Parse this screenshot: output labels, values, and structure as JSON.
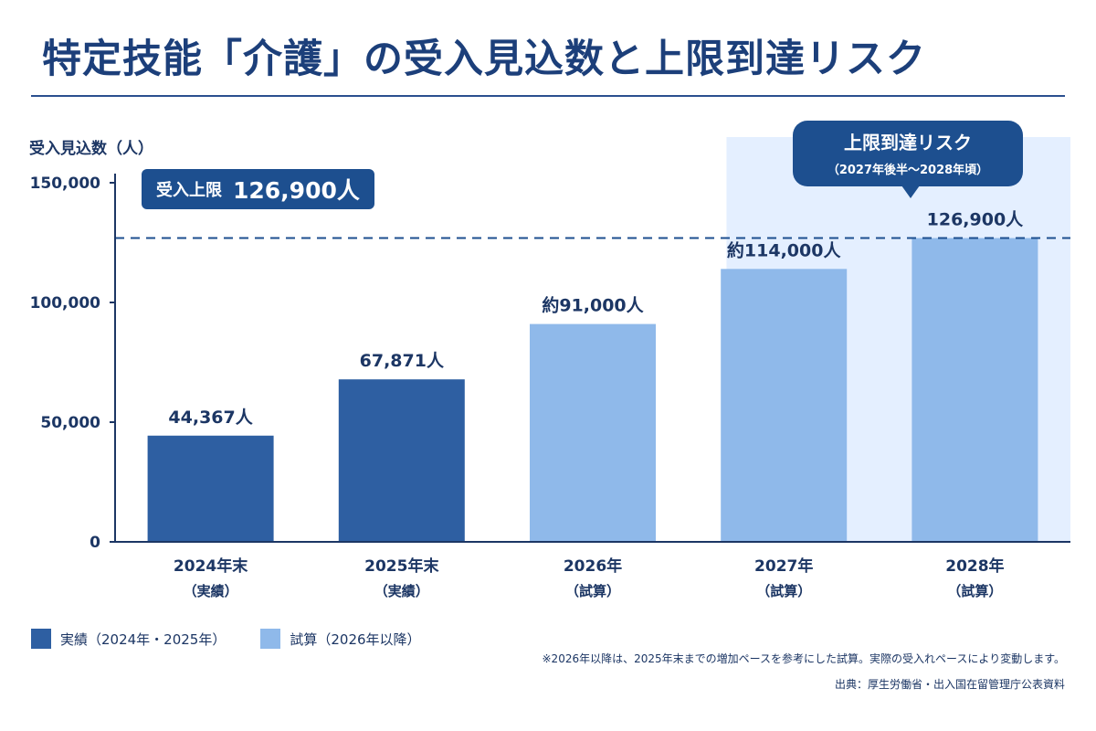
{
  "title": "特定技能「介護」の受入見込数と上限到達リスク",
  "colors": {
    "actual": "#2e5fa2",
    "estimate": "#8fb9ea",
    "risk_zone": "#e4efff",
    "accent": "#1d4f8f",
    "axis": "#1c3664"
  },
  "cap_badge": {
    "label": "受入上限",
    "value": "126,900人"
  },
  "risk_callout": {
    "title": "上限到達リスク",
    "subtitle": "（2027年後半〜2028年頃）"
  },
  "chart_data": {
    "type": "bar",
    "ylabel": "受入見込数（人）",
    "ylim": [
      0,
      150000
    ],
    "yticks": [
      0,
      50000,
      100000,
      150000
    ],
    "ytick_labels": [
      "0",
      "50,000",
      "100,000",
      "150,000"
    ],
    "cap_value": 126900,
    "categories": [
      {
        "label": "2024年末",
        "sub": "（実績）",
        "value": 44367,
        "value_label": "44,367人",
        "kind": "actual"
      },
      {
        "label": "2025年末",
        "sub": "（実績）",
        "value": 67871,
        "value_label": "67,871人",
        "kind": "actual"
      },
      {
        "label": "2026年",
        "sub": "（試算）",
        "value": 91000,
        "value_label": "約91,000人",
        "kind": "estimate"
      },
      {
        "label": "2027年",
        "sub": "（試算）",
        "value": 114000,
        "value_label": "約114,000人",
        "kind": "estimate"
      },
      {
        "label": "2028年",
        "sub": "（試算）",
        "value": 126900,
        "value_label": "126,900人",
        "kind": "estimate"
      }
    ]
  },
  "legend": [
    {
      "label": "実績（2024年・2025年）",
      "kind": "actual"
    },
    {
      "label": "試算（2026年以降）",
      "kind": "estimate"
    }
  ],
  "note": "※2026年以降は、2025年末までの増加ペースを参考にした試算。実際の受入れペースにより変動します。",
  "source": "出典：厚生労働省・出入国在留管理庁公表資料"
}
